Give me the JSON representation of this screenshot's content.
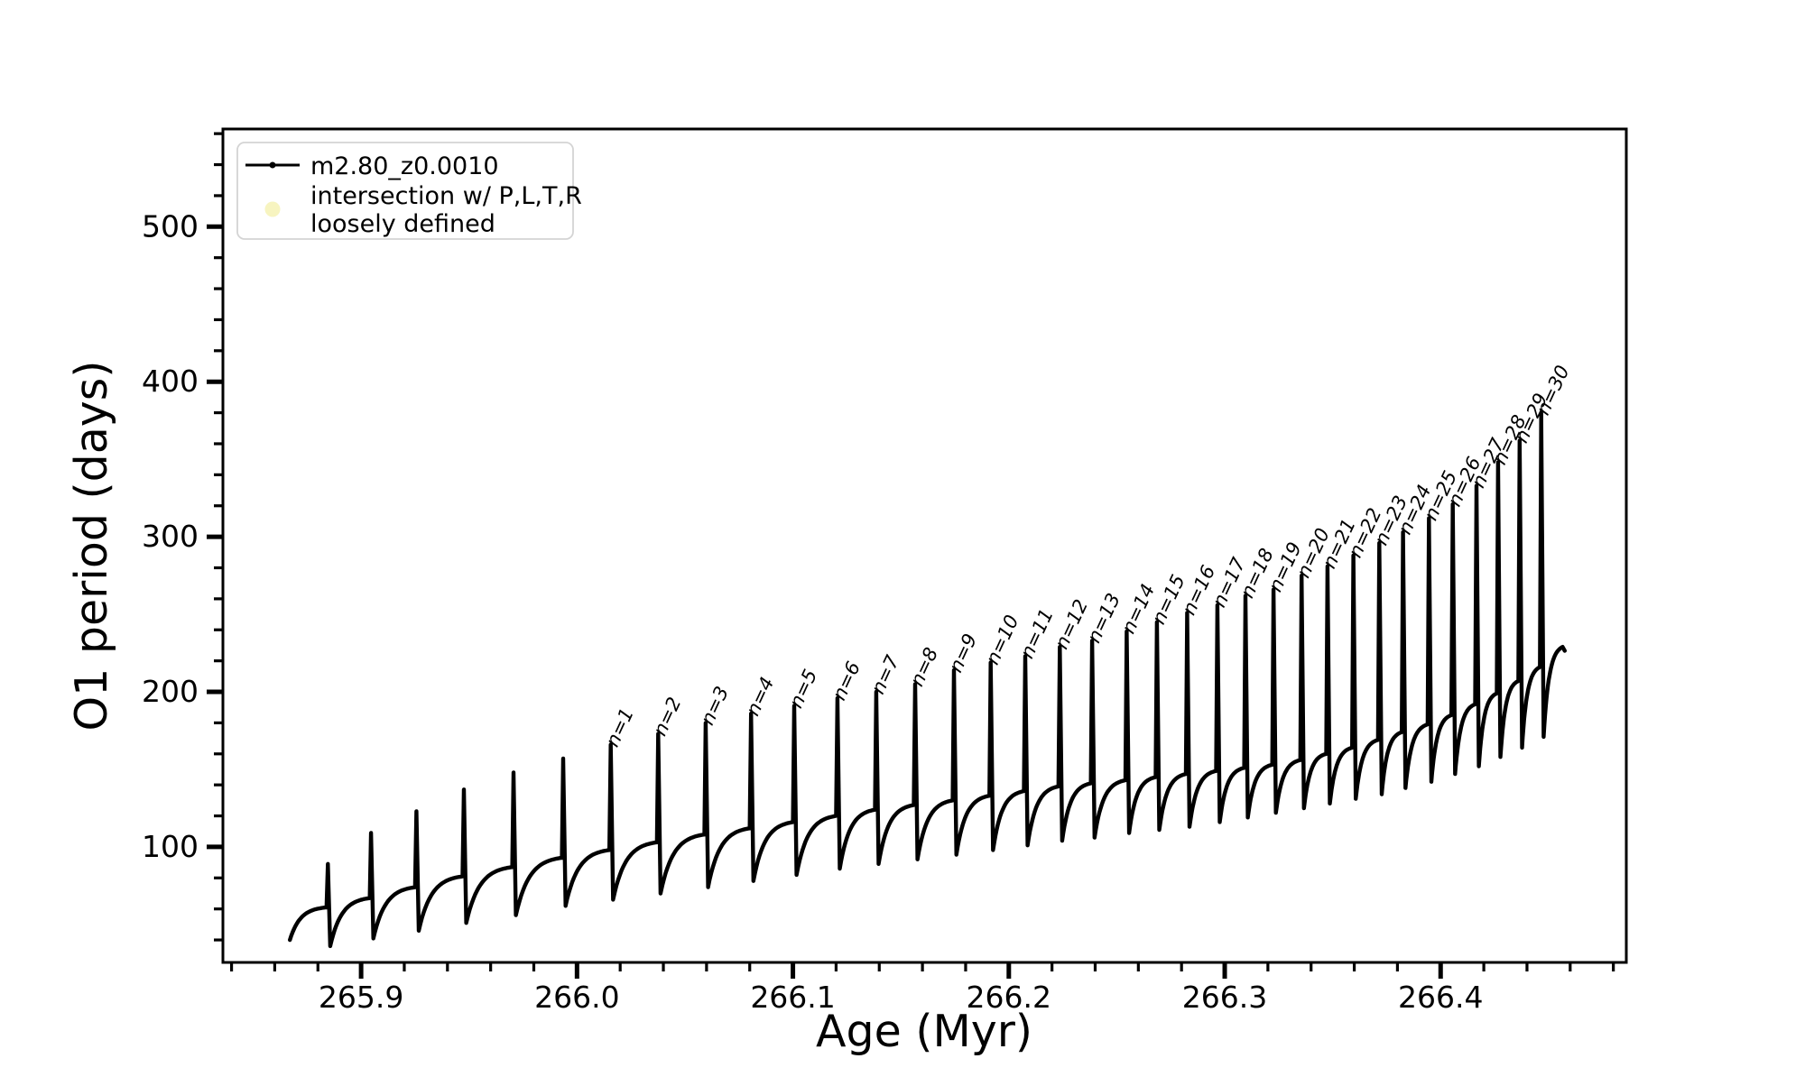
{
  "figure": {
    "background_color": "#ffffff",
    "line_color": "#000000",
    "intersection_marker_color": "#f7f4c0",
    "legend_border_color": "#d4d4d4"
  },
  "legend": {
    "series_label": "m2.80_z0.0010",
    "intersection_label_line1": "intersection w/ P,L,T,R",
    "intersection_label_line2": "loosely defined"
  },
  "chart_data": {
    "type": "line",
    "title": "",
    "xlabel": "Age (Myr)",
    "ylabel": "O1 period (days)",
    "grid": false,
    "legend_position": "upper left",
    "series_name": "m2.80_z0.0010",
    "xlim": [
      265.836,
      266.486
    ],
    "ylim": [
      25.5,
      563
    ],
    "x_major_ticks": [
      265.9,
      266.0,
      266.1,
      266.2,
      266.3,
      266.4
    ],
    "x_tick_labels": [
      "265.9",
      "266.0",
      "266.1",
      "266.2",
      "266.3",
      "266.4"
    ],
    "x_minor_step": 0.02,
    "y_major_ticks": [
      100,
      200,
      300,
      400,
      500
    ],
    "y_tick_labels": [
      "100",
      "200",
      "300",
      "400",
      "500"
    ],
    "y_minor_step": 20,
    "start_point": {
      "age": 265.867,
      "period": 40
    },
    "end_point": {
      "age": 266.4565,
      "period": 229
    },
    "cycles": [
      {
        "age": 265.884,
        "peak": 89,
        "base": 61,
        "dip": 36,
        "label": ""
      },
      {
        "age": 265.904,
        "peak": 109,
        "base": 67,
        "dip": 41,
        "label": ""
      },
      {
        "age": 265.925,
        "peak": 123,
        "base": 74,
        "dip": 46,
        "label": ""
      },
      {
        "age": 265.947,
        "peak": 137,
        "base": 81,
        "dip": 51,
        "label": ""
      },
      {
        "age": 265.97,
        "peak": 148,
        "base": 87,
        "dip": 56,
        "label": ""
      },
      {
        "age": 265.993,
        "peak": 157,
        "base": 93,
        "dip": 62,
        "label": ""
      },
      {
        "age": 266.015,
        "peak": 166,
        "base": 98,
        "dip": 66,
        "label": "n=1"
      },
      {
        "age": 266.037,
        "peak": 173,
        "base": 103,
        "dip": 70,
        "label": "n=2"
      },
      {
        "age": 266.059,
        "peak": 180,
        "base": 108,
        "dip": 74,
        "label": "n=3"
      },
      {
        "age": 266.08,
        "peak": 186,
        "base": 112,
        "dip": 78,
        "label": "n=4"
      },
      {
        "age": 266.1,
        "peak": 191,
        "base": 116,
        "dip": 82,
        "label": "n=5"
      },
      {
        "age": 266.12,
        "peak": 196,
        "base": 120,
        "dip": 86,
        "label": "n=6"
      },
      {
        "age": 266.138,
        "peak": 200,
        "base": 124,
        "dip": 89,
        "label": "n=7"
      },
      {
        "age": 266.156,
        "peak": 205,
        "base": 127,
        "dip": 92,
        "label": "n=8"
      },
      {
        "age": 266.174,
        "peak": 214,
        "base": 130,
        "dip": 95,
        "label": "n=9"
      },
      {
        "age": 266.191,
        "peak": 219,
        "base": 133,
        "dip": 98,
        "label": "n=10"
      },
      {
        "age": 266.207,
        "peak": 223,
        "base": 136,
        "dip": 101,
        "label": "n=11"
      },
      {
        "age": 266.223,
        "peak": 229,
        "base": 139,
        "dip": 104,
        "label": "n=12"
      },
      {
        "age": 266.238,
        "peak": 233,
        "base": 141,
        "dip": 106,
        "label": "n=13"
      },
      {
        "age": 266.254,
        "peak": 239,
        "base": 143,
        "dip": 109,
        "label": "n=14"
      },
      {
        "age": 266.268,
        "peak": 245,
        "base": 145,
        "dip": 111,
        "label": "n=15"
      },
      {
        "age": 266.282,
        "peak": 251,
        "base": 147,
        "dip": 113,
        "label": "n=16"
      },
      {
        "age": 266.296,
        "peak": 256,
        "base": 149,
        "dip": 116,
        "label": "n=17"
      },
      {
        "age": 266.309,
        "peak": 262,
        "base": 151,
        "dip": 119,
        "label": "n=18"
      },
      {
        "age": 266.322,
        "peak": 266,
        "base": 153,
        "dip": 122,
        "label": "n=19"
      },
      {
        "age": 266.335,
        "peak": 275,
        "base": 156,
        "dip": 125,
        "label": "n=20"
      },
      {
        "age": 266.347,
        "peak": 281,
        "base": 160,
        "dip": 128,
        "label": "n=21"
      },
      {
        "age": 266.359,
        "peak": 288,
        "base": 164,
        "dip": 131,
        "label": "n=22"
      },
      {
        "age": 266.371,
        "peak": 296,
        "base": 169,
        "dip": 134,
        "label": "n=23"
      },
      {
        "age": 266.382,
        "peak": 303,
        "base": 174,
        "dip": 138,
        "label": "n=24"
      },
      {
        "age": 266.394,
        "peak": 312,
        "base": 179,
        "dip": 142,
        "label": "n=25"
      },
      {
        "age": 266.405,
        "peak": 321,
        "base": 185,
        "dip": 147,
        "label": "n=26"
      },
      {
        "age": 266.416,
        "peak": 333,
        "base": 192,
        "dip": 152,
        "label": "n=27"
      },
      {
        "age": 266.426,
        "peak": 348,
        "base": 199,
        "dip": 158,
        "label": "n=28"
      },
      {
        "age": 266.436,
        "peak": 362,
        "base": 207,
        "dip": 164,
        "label": "n=29"
      },
      {
        "age": 266.446,
        "peak": 380,
        "base": 216,
        "dip": 171,
        "label": "n=30"
      }
    ]
  }
}
